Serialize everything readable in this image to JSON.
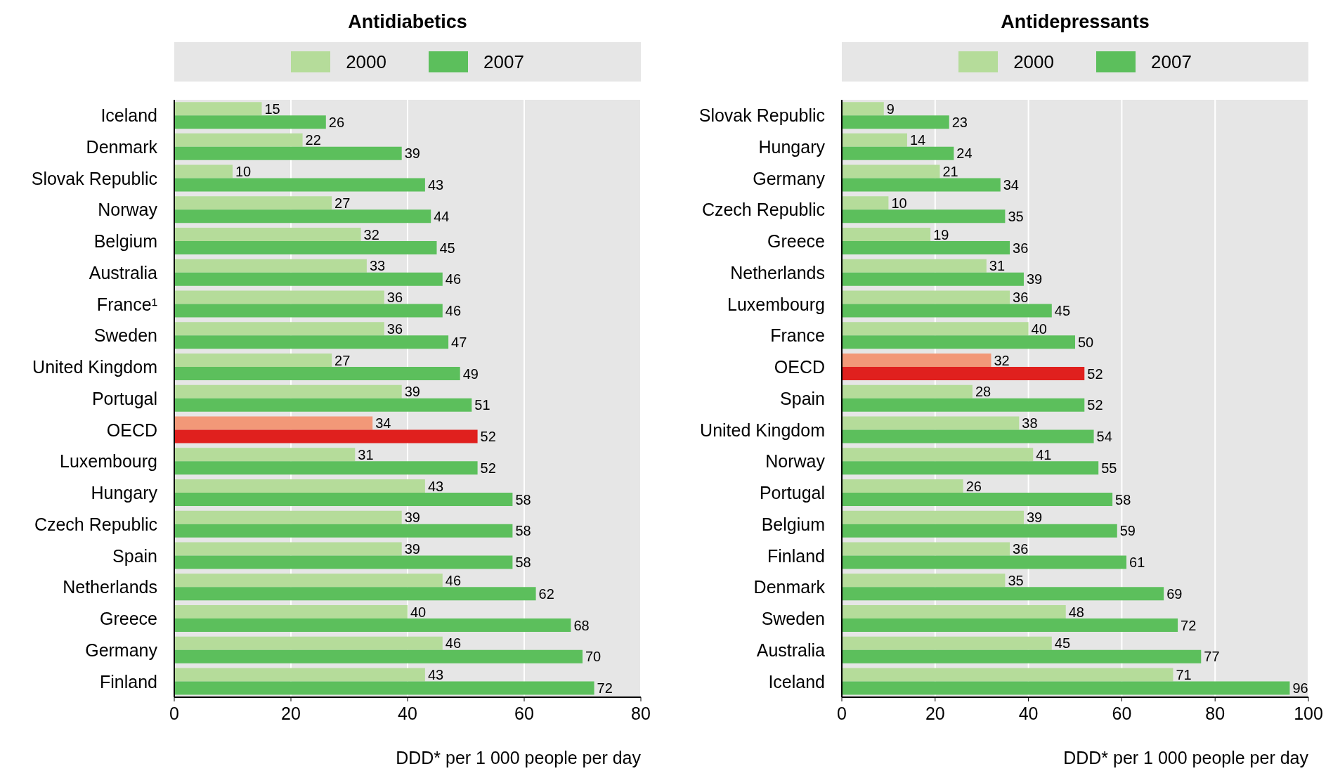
{
  "chart_data": [
    {
      "type": "bar",
      "orientation": "horizontal",
      "title": "Antidiabetics",
      "xlabel": "DDD* per 1 000 people per day",
      "categories": [
        "Iceland",
        "Denmark",
        "Slovak Republic",
        "Norway",
        "Belgium",
        "Australia",
        "France¹",
        "Sweden",
        "United Kingdom",
        "Portugal",
        "OECD",
        "Luxembourg",
        "Hungary",
        "Czech Republic",
        "Spain",
        "Netherlands",
        "Greece",
        "Germany",
        "Finland"
      ],
      "series": [
        {
          "name": "2000",
          "color": "#b5dc9a",
          "colors": [
            "#b5dc9a",
            "#b5dc9a",
            "#b5dc9a",
            "#b5dc9a",
            "#b5dc9a",
            "#b5dc9a",
            "#b5dc9a",
            "#b5dc9a",
            "#b5dc9a",
            "#b5dc9a",
            "#f29878",
            "#b5dc9a",
            "#b5dc9a",
            "#b5dc9a",
            "#b5dc9a",
            "#b5dc9a",
            "#b5dc9a",
            "#b5dc9a",
            "#b5dc9a"
          ],
          "values": [
            15,
            22,
            10,
            27,
            32,
            33,
            36,
            36,
            27,
            39,
            34,
            31,
            43,
            39,
            39,
            46,
            40,
            46,
            43
          ]
        },
        {
          "name": "2007",
          "color": "#5cbf5c",
          "colors": [
            "#5cbf5c",
            "#5cbf5c",
            "#5cbf5c",
            "#5cbf5c",
            "#5cbf5c",
            "#5cbf5c",
            "#5cbf5c",
            "#5cbf5c",
            "#5cbf5c",
            "#5cbf5c",
            "#e0201e",
            "#5cbf5c",
            "#5cbf5c",
            "#5cbf5c",
            "#5cbf5c",
            "#5cbf5c",
            "#5cbf5c",
            "#5cbf5c",
            "#5cbf5c"
          ],
          "values": [
            26,
            39,
            43,
            44,
            45,
            46,
            46,
            47,
            49,
            51,
            52,
            52,
            58,
            58,
            58,
            62,
            68,
            70,
            72
          ]
        }
      ],
      "xlim": [
        0,
        80
      ],
      "xticks": [
        0,
        20,
        40,
        60,
        80
      ],
      "grid": "x",
      "legend": "top",
      "data_labels": true
    },
    {
      "type": "bar",
      "orientation": "horizontal",
      "title": "Antidepressants",
      "xlabel": "DDD* per 1 000 people per day",
      "categories": [
        "Slovak Republic",
        "Hungary",
        "Germany",
        "Czech Republic",
        "Greece",
        "Netherlands",
        "Luxembourg",
        "France",
        "OECD",
        "Spain",
        "United Kingdom",
        "Norway",
        "Portugal",
        "Belgium",
        "Finland",
        "Denmark",
        "Sweden",
        "Australia",
        "Iceland"
      ],
      "series": [
        {
          "name": "2000",
          "color": "#b5dc9a",
          "colors": [
            "#b5dc9a",
            "#b5dc9a",
            "#b5dc9a",
            "#b5dc9a",
            "#b5dc9a",
            "#b5dc9a",
            "#b5dc9a",
            "#b5dc9a",
            "#f29878",
            "#b5dc9a",
            "#b5dc9a",
            "#b5dc9a",
            "#b5dc9a",
            "#b5dc9a",
            "#b5dc9a",
            "#b5dc9a",
            "#b5dc9a",
            "#b5dc9a",
            "#b5dc9a"
          ],
          "values": [
            9,
            14,
            21,
            10,
            19,
            31,
            36,
            40,
            32,
            28,
            38,
            41,
            26,
            39,
            36,
            35,
            48,
            45,
            71
          ]
        },
        {
          "name": "2007",
          "color": "#5cbf5c",
          "colors": [
            "#5cbf5c",
            "#5cbf5c",
            "#5cbf5c",
            "#5cbf5c",
            "#5cbf5c",
            "#5cbf5c",
            "#5cbf5c",
            "#5cbf5c",
            "#e0201e",
            "#5cbf5c",
            "#5cbf5c",
            "#5cbf5c",
            "#5cbf5c",
            "#5cbf5c",
            "#5cbf5c",
            "#5cbf5c",
            "#5cbf5c",
            "#5cbf5c",
            "#5cbf5c"
          ],
          "values": [
            23,
            24,
            34,
            35,
            36,
            39,
            45,
            50,
            52,
            52,
            54,
            55,
            58,
            59,
            61,
            69,
            72,
            77,
            96
          ]
        }
      ],
      "xlim": [
        0,
        100
      ],
      "xticks": [
        0,
        20,
        40,
        60,
        80,
        100
      ],
      "grid": "x",
      "legend": "top",
      "data_labels": true
    }
  ]
}
